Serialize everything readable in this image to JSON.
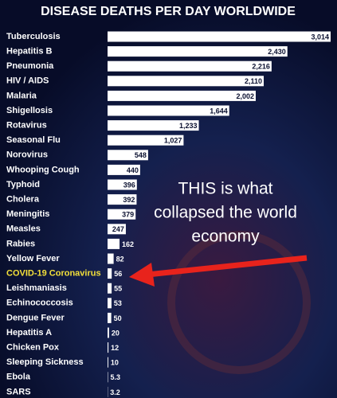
{
  "chart_data": {
    "type": "bar",
    "orientation": "horizontal",
    "title": "DISEASE DEATHS PER DAY WORLDWIDE",
    "categories": [
      "Tuberculosis",
      "Hepatitis B",
      "Pneumonia",
      "HIV / AIDS",
      "Malaria",
      "Shigellosis",
      "Rotavirus",
      "Seasonal Flu",
      "Norovirus",
      "Whooping Cough",
      "Typhoid",
      "Cholera",
      "Meningitis",
      "Measles",
      "Rabies",
      "Yellow Fever",
      "COVID-19 Coronavirus",
      "Leishmaniasis",
      "Echinococcosis",
      "Dengue Fever",
      "Hepatitis A",
      "Chicken Pox",
      "Sleeping Sickness",
      "Ebola",
      "SARS"
    ],
    "values": [
      3014,
      2430,
      2216,
      2110,
      2002,
      1644,
      1233,
      1027,
      548,
      440,
      396,
      392,
      379,
      247,
      162,
      82,
      56,
      55,
      53,
      50,
      20,
      12,
      10,
      5.3,
      3.2
    ],
    "value_labels": [
      "3,014",
      "2,430",
      "2,216",
      "2,110",
      "2,002",
      "1,644",
      "1,233",
      "1,027",
      "548",
      "440",
      "396",
      "392",
      "379",
      "247",
      "162",
      "82",
      "56",
      "55",
      "53",
      "50",
      "20",
      "12",
      "10",
      "5.3",
      "3.2"
    ],
    "color": "#ffffff",
    "label_color": "#ffffff",
    "highlight": {
      "index": 16,
      "color": "#f3e03a"
    },
    "annotation": [
      "THIS is what",
      "collapsed the world",
      "economy"
    ]
  }
}
